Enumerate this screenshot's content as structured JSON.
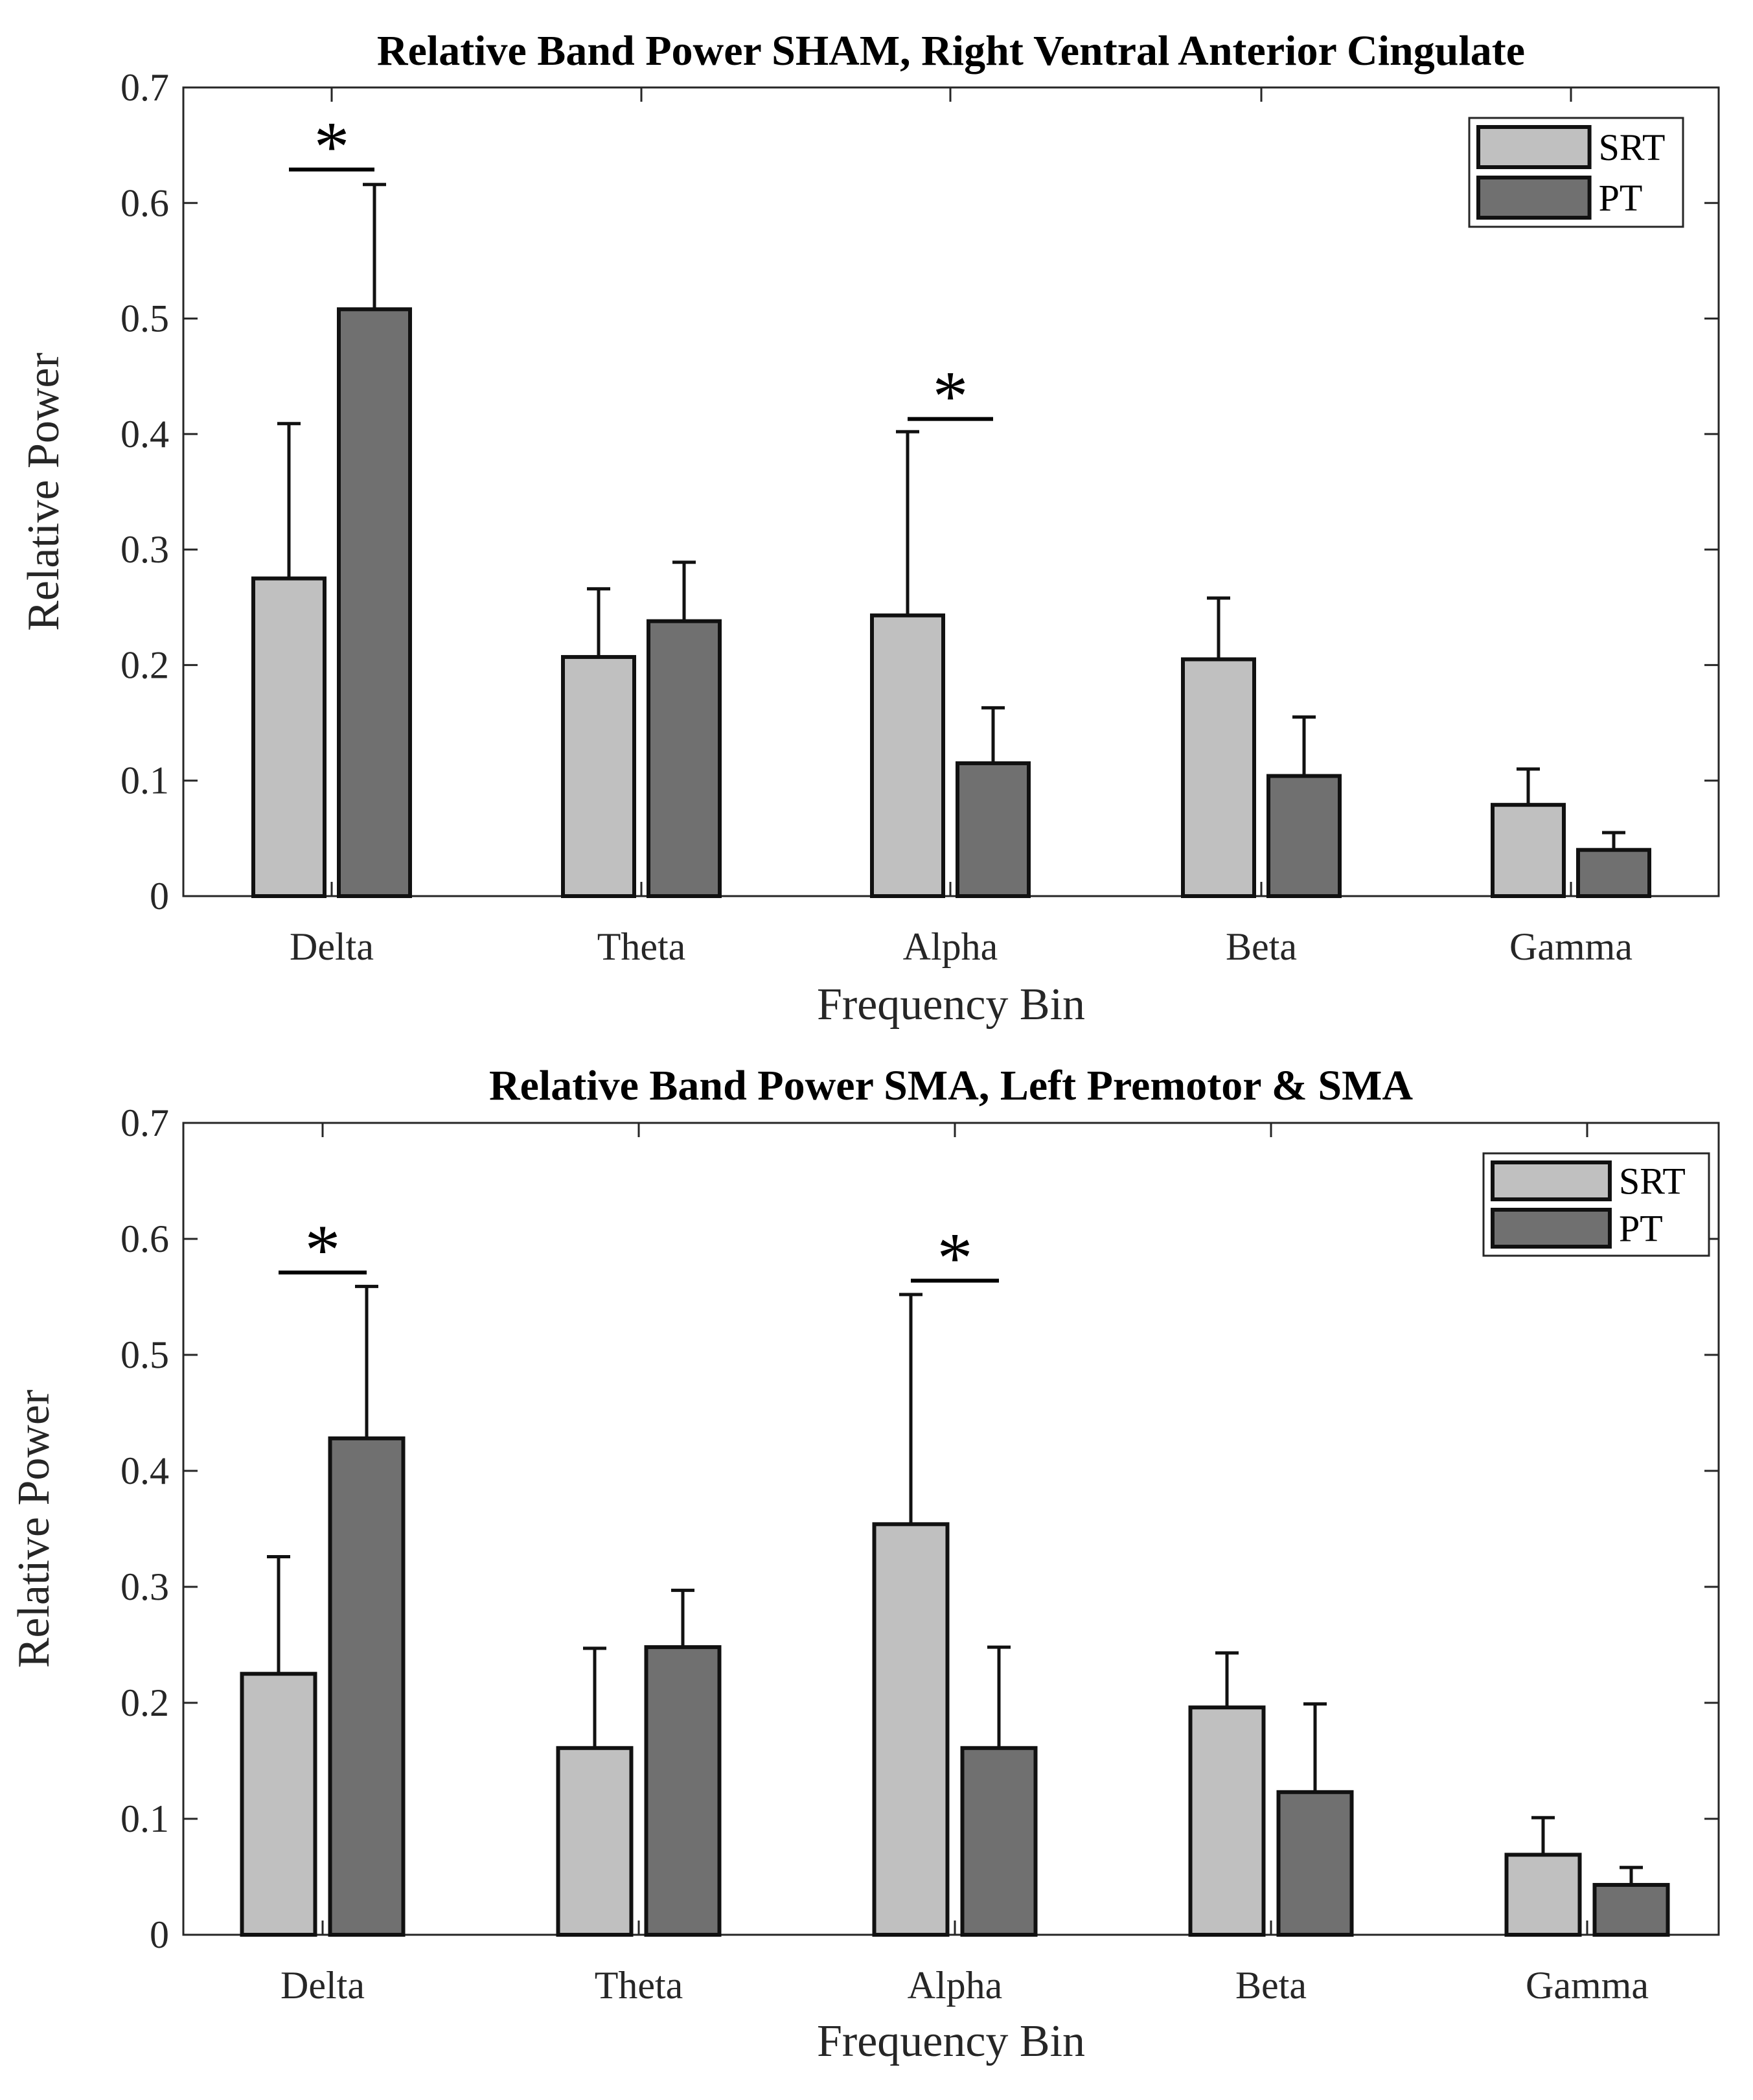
{
  "chart_data": [
    {
      "type": "bar",
      "title": "Relative Band Power SHAM, Right Ventral Anterior Cingulate",
      "xlabel": "Frequency Bin",
      "ylabel": "Relative Power",
      "ylim": [
        0,
        0.7
      ],
      "yticks": [
        "0",
        "0.1",
        "0.2",
        "0.3",
        "0.4",
        "0.5",
        "0.6",
        "0.7"
      ],
      "categories": [
        "Delta",
        "Theta",
        "Alpha",
        "Beta",
        "Gamma"
      ],
      "series": [
        {
          "name": "SRT",
          "color": "#c0c0c0",
          "values": [
            0.275,
            0.207,
            0.243,
            0.205,
            0.079
          ],
          "errors": [
            0.134,
            0.059,
            0.159,
            0.053,
            0.031
          ]
        },
        {
          "name": "PT",
          "color": "#707070",
          "values": [
            0.508,
            0.238,
            0.115,
            0.104,
            0.04
          ],
          "errors": [
            0.108,
            0.051,
            0.048,
            0.051,
            0.015
          ]
        }
      ],
      "significance": [
        {
          "category": "Delta",
          "label": "*",
          "y": 0.629
        },
        {
          "category": "Alpha",
          "label": "*",
          "y": 0.413
        }
      ],
      "legend": "top-right",
      "grid": false
    },
    {
      "type": "bar",
      "title": "Relative Band Power SMA, Left Premotor & SMA",
      "xlabel": "Frequency Bin",
      "ylabel": "Relative Power",
      "ylim": [
        0,
        0.7
      ],
      "yticks": [
        "0",
        "0.1",
        "0.2",
        "0.3",
        "0.4",
        "0.5",
        "0.6",
        "0.7"
      ],
      "categories": [
        "Delta",
        "Theta",
        "Alpha",
        "Beta",
        "Gamma"
      ],
      "series": [
        {
          "name": "SRT",
          "color": "#c0c0c0",
          "values": [
            0.225,
            0.161,
            0.354,
            0.196,
            0.069
          ],
          "errors": [
            0.101,
            0.086,
            0.198,
            0.047,
            0.032
          ]
        },
        {
          "name": "PT",
          "color": "#707070",
          "values": [
            0.428,
            0.248,
            0.161,
            0.123,
            0.043
          ],
          "errors": [
            0.131,
            0.049,
            0.087,
            0.076,
            0.015
          ]
        }
      ],
      "significance": [
        {
          "category": "Delta",
          "label": "*",
          "y": 0.571
        },
        {
          "category": "Alpha",
          "label": "*",
          "y": 0.564
        }
      ],
      "legend": "top-right",
      "grid": false
    }
  ]
}
